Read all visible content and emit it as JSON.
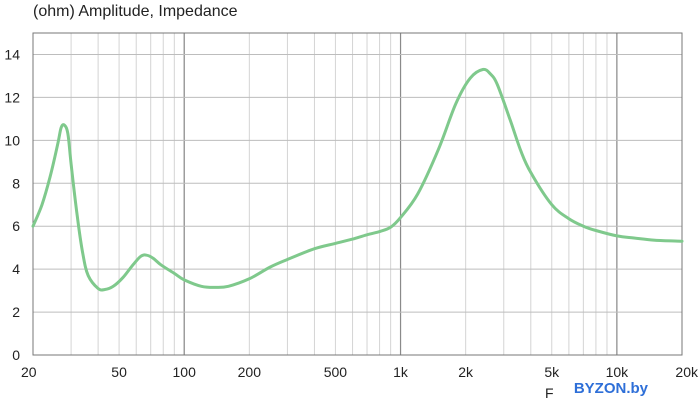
{
  "chart_data": {
    "type": "line",
    "title": "(ohm)  Amplitude, Impedance",
    "xlabel": "F",
    "ylabel": "",
    "xscale": "log",
    "xlim": [
      20,
      20000
    ],
    "ylim": [
      0,
      15
    ],
    "grid": true,
    "line_color": "#7fc98c",
    "x_ticks": [
      {
        "value": 20,
        "label": "20"
      },
      {
        "value": 50,
        "label": "50"
      },
      {
        "value": 100,
        "label": "100"
      },
      {
        "value": 200,
        "label": "200"
      },
      {
        "value": 500,
        "label": "500"
      },
      {
        "value": 1000,
        "label": "1k"
      },
      {
        "value": 2000,
        "label": "2k"
      },
      {
        "value": 5000,
        "label": "5k"
      },
      {
        "value": 10000,
        "label": "10k"
      },
      {
        "value": 20000,
        "label": "20k"
      }
    ],
    "y_ticks": [
      0,
      2,
      4,
      6,
      8,
      10,
      12,
      14
    ],
    "series": [
      {
        "x": [
          20,
          22,
          24,
          26,
          27,
          28,
          29,
          30,
          32,
          34,
          36,
          40,
          43,
          47,
          52,
          58,
          63,
          67,
          72,
          78,
          90,
          100,
          120,
          140,
          160,
          200,
          250,
          300,
          400,
          500,
          600,
          700,
          800,
          900,
          1000,
          1200,
          1500,
          1800,
          2100,
          2400,
          2600,
          2800,
          3200,
          3600,
          4000,
          5000,
          6000,
          7000,
          8000,
          10000,
          12000,
          15000,
          20000
        ],
        "y": [
          6.0,
          7.0,
          8.3,
          9.8,
          10.6,
          10.7,
          10.3,
          8.9,
          6.5,
          4.7,
          3.7,
          3.1,
          3.05,
          3.2,
          3.6,
          4.2,
          4.6,
          4.65,
          4.5,
          4.2,
          3.8,
          3.5,
          3.2,
          3.15,
          3.2,
          3.55,
          4.1,
          4.45,
          4.95,
          5.2,
          5.4,
          5.6,
          5.75,
          5.95,
          6.4,
          7.5,
          9.6,
          11.7,
          12.9,
          13.3,
          13.1,
          12.6,
          11.0,
          9.5,
          8.5,
          7.0,
          6.35,
          6.0,
          5.8,
          5.55,
          5.45,
          5.35,
          5.3
        ]
      }
    ]
  },
  "watermark": "BYZON.by"
}
